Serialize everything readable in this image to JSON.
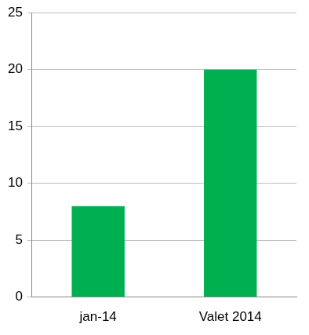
{
  "chart_data": {
    "type": "bar",
    "categories": [
      "jan-14",
      "Valet 2014"
    ],
    "values": [
      8,
      20
    ],
    "color": "#00b050",
    "ylim": [
      0,
      25
    ],
    "yticks": [
      0,
      5,
      10,
      15,
      20,
      25
    ],
    "grid": true
  }
}
